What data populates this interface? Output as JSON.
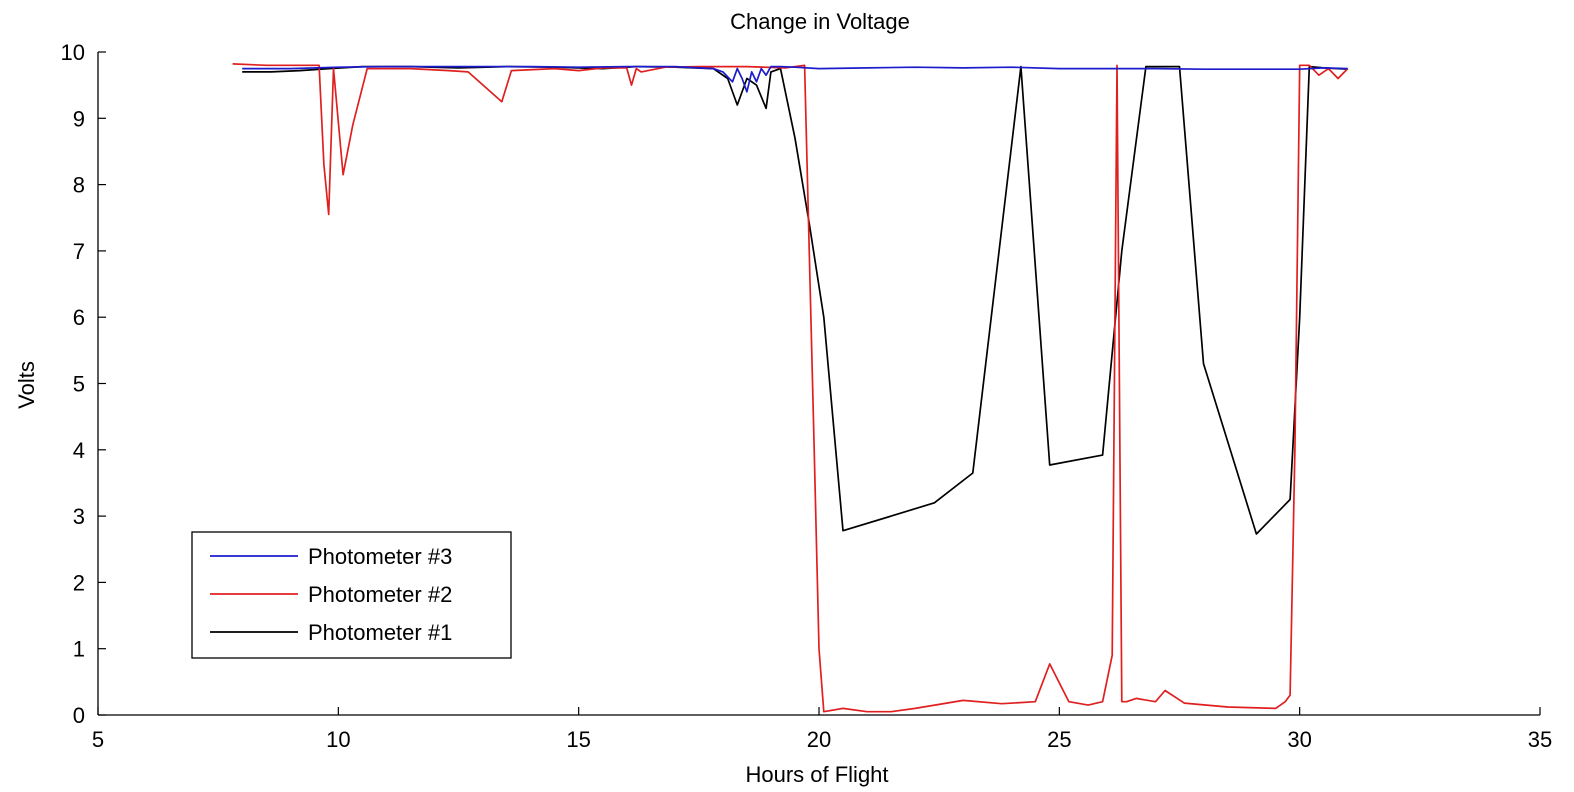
{
  "chart_data": {
    "type": "line",
    "title": "Change in Voltage",
    "xlabel": "Hours of Flight",
    "ylabel": "Volts",
    "xlim": [
      5,
      35
    ],
    "ylim": [
      0,
      10
    ],
    "xticks": [
      5,
      10,
      15,
      20,
      25,
      30,
      35
    ],
    "yticks": [
      0,
      1,
      2,
      3,
      4,
      5,
      6,
      7,
      8,
      9,
      10
    ],
    "grid": false,
    "legend_position": "bottom-left",
    "series": [
      {
        "name": "Photometer #1",
        "color": "#000000",
        "x": [
          8.0,
          8.6,
          9.2,
          9.8,
          10.5,
          11.5,
          12.5,
          13.5,
          14.5,
          15.5,
          16.2,
          17.0,
          17.8,
          18.1,
          18.3,
          18.5,
          18.7,
          18.9,
          19.0,
          19.2,
          19.5,
          19.8,
          20.1,
          20.5,
          21.5,
          22.4,
          23.2,
          24.2,
          24.8,
          25.9,
          26.3,
          26.8,
          27.5,
          28.0,
          29.1,
          29.8,
          30.0,
          30.2,
          30.5,
          31.0
        ],
        "y": [
          9.7,
          9.7,
          9.72,
          9.75,
          9.78,
          9.78,
          9.76,
          9.78,
          9.77,
          9.75,
          9.78,
          9.77,
          9.75,
          9.6,
          9.2,
          9.6,
          9.5,
          9.15,
          9.7,
          9.75,
          8.7,
          7.4,
          6.0,
          2.78,
          3.0,
          3.2,
          3.65,
          9.78,
          3.77,
          3.92,
          7.0,
          9.78,
          9.78,
          5.3,
          2.73,
          3.25,
          6.0,
          9.78,
          9.76,
          9.74
        ]
      },
      {
        "name": "Photometer #2",
        "color": "#e02020",
        "x": [
          7.8,
          8.5,
          9.0,
          9.6,
          9.7,
          9.8,
          9.9,
          10.1,
          10.3,
          10.6,
          11.5,
          12.3,
          12.7,
          13.4,
          13.6,
          14.5,
          15.0,
          15.5,
          16.0,
          16.1,
          16.2,
          16.3,
          16.8,
          17.5,
          18.5,
          19.3,
          19.7,
          19.9,
          20.0,
          20.1,
          20.5,
          21.0,
          21.5,
          22.0,
          23.0,
          23.8,
          24.5,
          24.8,
          25.2,
          25.6,
          25.9,
          26.1,
          26.2,
          26.3,
          26.4,
          26.6,
          27.0,
          27.2,
          27.6,
          28.5,
          29.5,
          29.7,
          29.8,
          29.9,
          30.0,
          30.2,
          30.4,
          30.6,
          30.8,
          31.0
        ],
        "y": [
          9.82,
          9.8,
          9.8,
          9.8,
          8.3,
          7.55,
          9.75,
          8.15,
          8.9,
          9.75,
          9.75,
          9.72,
          9.7,
          9.25,
          9.72,
          9.75,
          9.72,
          9.76,
          9.76,
          9.5,
          9.75,
          9.7,
          9.77,
          9.78,
          9.78,
          9.76,
          9.8,
          4.0,
          1.0,
          0.05,
          0.1,
          0.05,
          0.05,
          0.1,
          0.22,
          0.17,
          0.2,
          0.77,
          0.2,
          0.15,
          0.2,
          0.9,
          9.8,
          0.2,
          0.2,
          0.25,
          0.2,
          0.37,
          0.18,
          0.12,
          0.1,
          0.2,
          0.3,
          4.0,
          9.8,
          9.8,
          9.65,
          9.75,
          9.6,
          9.75
        ]
      },
      {
        "name": "Photometer #3",
        "color": "#1c1ccc",
        "x": [
          8.0,
          9.0,
          10.0,
          11.0,
          12.0,
          13.0,
          14.0,
          15.0,
          16.0,
          17.0,
          17.8,
          18.0,
          18.2,
          18.3,
          18.4,
          18.5,
          18.6,
          18.7,
          18.8,
          18.9,
          19.0,
          19.2,
          19.5,
          20.0,
          21.0,
          22.0,
          23.0,
          24.0,
          25.0,
          26.0,
          27.0,
          28.0,
          29.0,
          30.0,
          30.5,
          31.0
        ],
        "y": [
          9.75,
          9.75,
          9.77,
          9.78,
          9.78,
          9.78,
          9.78,
          9.77,
          9.78,
          9.78,
          9.75,
          9.7,
          9.55,
          9.75,
          9.6,
          9.4,
          9.7,
          9.55,
          9.75,
          9.65,
          9.78,
          9.78,
          9.77,
          9.75,
          9.76,
          9.77,
          9.76,
          9.77,
          9.75,
          9.75,
          9.75,
          9.74,
          9.74,
          9.74,
          9.76,
          9.75
        ]
      }
    ]
  }
}
